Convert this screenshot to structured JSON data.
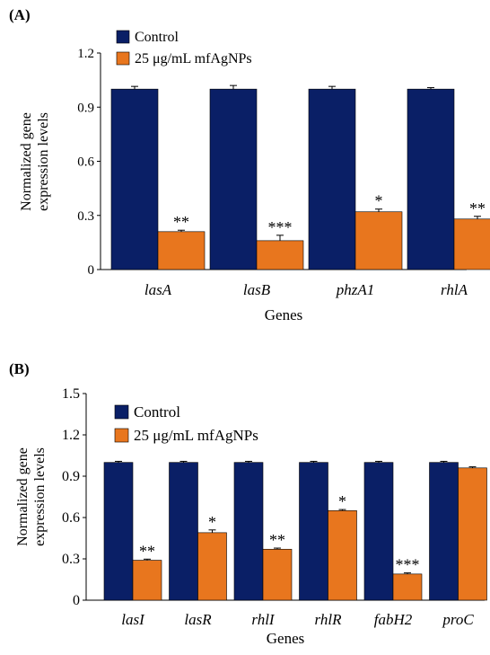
{
  "colors": {
    "control": "#0a1f66",
    "treated": "#e8761e",
    "axis": "#000000"
  },
  "chart_data": [
    {
      "panel_label": "(A)",
      "type": "bar",
      "xlabel": "Genes",
      "ylabel_lines": [
        "Normalized gene",
        "expression levels"
      ],
      "ylim": [
        0,
        1.2
      ],
      "yticks": [
        "0",
        "0.3",
        "0.6",
        "0.9",
        "1.2"
      ],
      "categories": [
        "lasA",
        "lasB",
        "phzA1",
        "rhlA"
      ],
      "legend_position": "top-left",
      "series": [
        {
          "name": "Control",
          "values": [
            1.0,
            1.0,
            1.0,
            1.0
          ],
          "errors": [
            0.015,
            0.02,
            0.015,
            0.008
          ],
          "annotations": [
            "",
            "",
            "",
            ""
          ]
        },
        {
          "name": "25 μg/mL mfAgNPs",
          "values": [
            0.21,
            0.16,
            0.32,
            0.28
          ],
          "errors": [
            0.008,
            0.03,
            0.015,
            0.015
          ],
          "annotations": [
            "**",
            "***",
            "*",
            "**"
          ]
        }
      ]
    },
    {
      "panel_label": "(B)",
      "type": "bar",
      "xlabel": "Genes",
      "ylabel_lines": [
        "Normalized gene",
        "expression levels"
      ],
      "ylim": [
        0,
        1.5
      ],
      "yticks": [
        "0",
        "0.3",
        "0.6",
        "0.9",
        "1.2",
        "1.5"
      ],
      "categories": [
        "lasI",
        "lasR",
        "rhlI",
        "rhlR",
        "fabH2",
        "proC"
      ],
      "legend_position": "top-left",
      "series": [
        {
          "name": "Control",
          "values": [
            1.0,
            1.0,
            1.0,
            1.0,
            1.0,
            1.0
          ],
          "errors": [
            0.008,
            0.008,
            0.008,
            0.008,
            0.008,
            0.008
          ],
          "annotations": [
            "",
            "",
            "",
            "",
            "",
            ""
          ]
        },
        {
          "name": "25 μg/mL mfAgNPs",
          "values": [
            0.29,
            0.49,
            0.37,
            0.65,
            0.19,
            0.96
          ],
          "errors": [
            0.008,
            0.02,
            0.008,
            0.008,
            0.008,
            0.008
          ],
          "annotations": [
            "**",
            "*",
            "**",
            "*",
            "***",
            ""
          ]
        }
      ]
    }
  ]
}
